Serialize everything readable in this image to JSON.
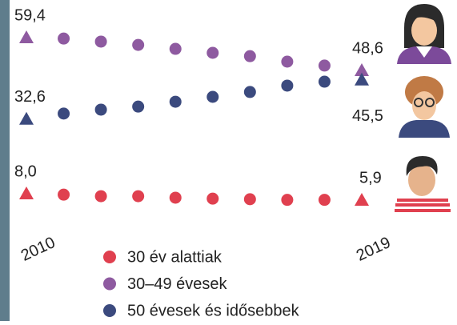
{
  "chart_data": {
    "type": "dot-trend",
    "categories": [
      "2010",
      null,
      null,
      null,
      null,
      null,
      null,
      null,
      null,
      "2019"
    ],
    "ylim": [
      0,
      70
    ],
    "series": [
      {
        "name": "30 év alattiak",
        "color": "#e0404f",
        "values": [
          8.0,
          7.7,
          7.2,
          7.2,
          6.7,
          6.4,
          6.2,
          6.0,
          6.0,
          5.9
        ],
        "value_labels": [
          "8,0",
          null,
          null,
          null,
          null,
          null,
          null,
          null,
          null,
          "5,9"
        ]
      },
      {
        "name": "30–49 évesek",
        "color": "#8e5aa0",
        "values": [
          59.4,
          59.1,
          58.1,
          57.0,
          55.7,
          54.4,
          53.3,
          51.5,
          50.2,
          48.6
        ],
        "value_labels": [
          "59,4",
          null,
          null,
          null,
          null,
          null,
          null,
          null,
          null,
          "48,6"
        ]
      },
      {
        "name": "50 évesek és idősebbek",
        "color": "#3b4a7e",
        "values": [
          32.6,
          34.4,
          35.7,
          36.7,
          38.3,
          39.9,
          41.5,
          43.6,
          44.9,
          45.5
        ],
        "value_labels": [
          "32,6",
          null,
          null,
          null,
          null,
          null,
          null,
          null,
          null,
          "45,5"
        ]
      }
    ]
  }
}
